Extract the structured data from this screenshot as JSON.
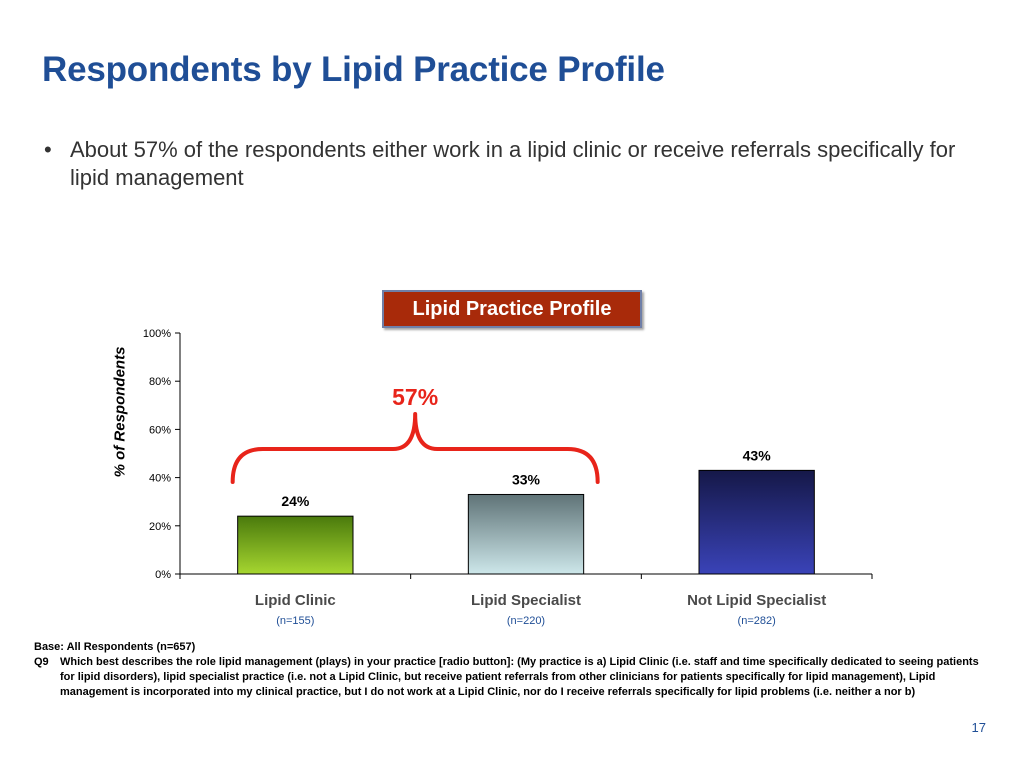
{
  "slide": {
    "title": "Respondents by Lipid Practice Profile",
    "bullet": "About 57% of the respondents either work in a lipid clinic or receive referrals specifically for lipid management",
    "base_note": "Base: All Respondents (n=657)",
    "question_id": "Q9",
    "question_text": "Which best describes the role lipid management (plays) in your practice [radio button]: (My practice is a) Lipid Clinic (i.e. staff and time specifically dedicated to seeing patients for lipid disorders), lipid specialist practice (i.e. not a Lipid Clinic, but receive patient referrals from other clinicians for patients specifically for lipid management), Lipid management is incorporated into my clinical practice, but I do not work at a Lipid Clinic, nor do I receive referrals specifically for lipid problems (i.e. neither a nor b)",
    "page_number": "17"
  },
  "chart_data": {
    "type": "bar",
    "title": "Lipid Practice Profile",
    "ylabel": "% of Respondents",
    "xlabel": "",
    "categories": [
      "Lipid Clinic",
      "Lipid Specialist",
      "Not Lipid Specialist"
    ],
    "sample_sizes": [
      "(n=155)",
      "(n=220)",
      "(n=282)"
    ],
    "values": [
      24,
      33,
      43
    ],
    "value_labels": [
      "24%",
      "33%",
      "43%"
    ],
    "ylim": [
      0,
      100
    ],
    "yticks": [
      0,
      20,
      40,
      60,
      80,
      100
    ],
    "ytick_labels": [
      "0%",
      "20%",
      "40%",
      "60%",
      "80%",
      "100%"
    ],
    "grid": false,
    "bar_colors": [
      "#7ab317",
      "#7f9aa0",
      "#2a2f8a"
    ],
    "annotation": {
      "label": "57%",
      "spans_categories": [
        0,
        1
      ],
      "color": "#e8241a"
    }
  }
}
